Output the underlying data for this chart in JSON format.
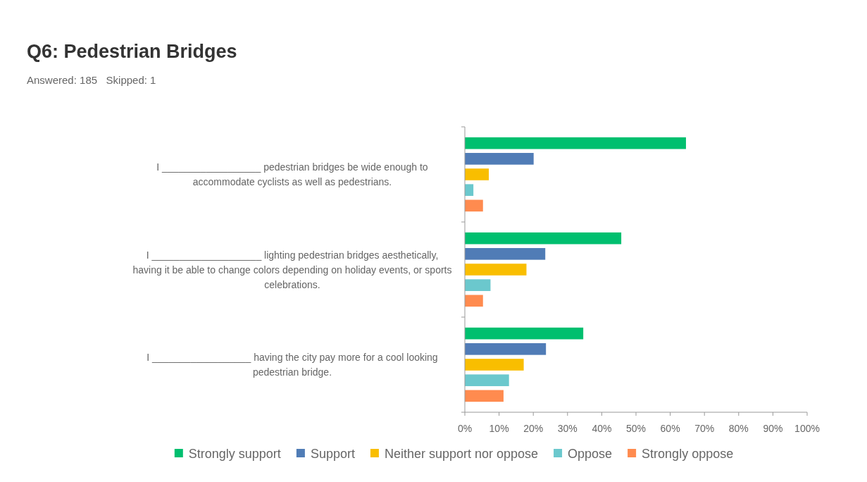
{
  "chart_data": {
    "type": "bar",
    "orientation": "horizontal",
    "title": "Q6: Pedestrian Bridges",
    "subtitle": "Answered: 185   Skipped: 1",
    "categories": [
      "I __________________ pedestrian bridges be wide enough to accommodate cyclists as well as pedestrians.",
      "I ____________________ lighting pedestrian bridges aesthetically, having it be able to change colors depending on holiday events, or sports celebrations.",
      "I __________________ having the city pay more for a cool looking pedestrian bridge."
    ],
    "series": [
      {
        "name": "Strongly support",
        "color": "#00bf6f",
        "values": [
          64.6,
          45.7,
          34.6
        ]
      },
      {
        "name": "Support",
        "color": "#507cb6",
        "values": [
          20.1,
          23.5,
          23.7
        ]
      },
      {
        "name": "Neither support nor oppose",
        "color": "#f9be00",
        "values": [
          7.0,
          18.0,
          17.2
        ]
      },
      {
        "name": "Oppose",
        "color": "#6bc8cd",
        "values": [
          2.5,
          7.5,
          12.9
        ]
      },
      {
        "name": "Strongly oppose",
        "color": "#ff8b4f",
        "values": [
          5.3,
          5.3,
          11.3
        ]
      }
    ],
    "xlim": [
      0,
      100
    ],
    "xticks": [
      {
        "value": 0,
        "label": "0%"
      },
      {
        "value": 10,
        "label": "10%"
      },
      {
        "value": 20,
        "label": "20%"
      },
      {
        "value": 30,
        "label": "30%"
      },
      {
        "value": 40,
        "label": "40%"
      },
      {
        "value": 50,
        "label": "50%"
      },
      {
        "value": 60,
        "label": "60%"
      },
      {
        "value": 70,
        "label": "70%"
      },
      {
        "value": 80,
        "label": "80%"
      },
      {
        "value": 90,
        "label": "90%"
      },
      {
        "value": 100,
        "label": "100%"
      }
    ],
    "grid": false,
    "legend": "bottom"
  }
}
